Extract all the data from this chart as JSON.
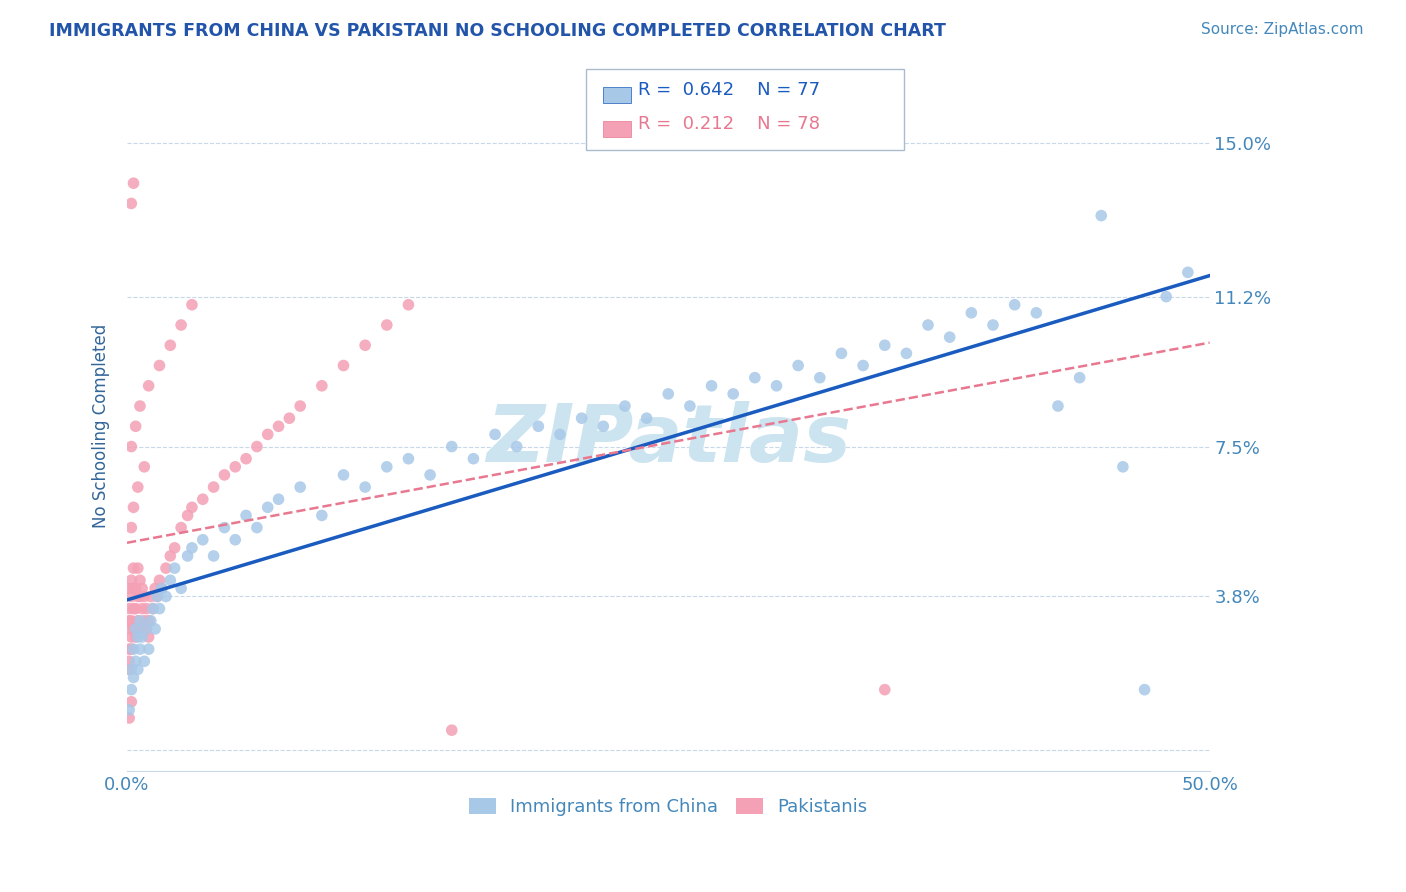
{
  "title": "IMMIGRANTS FROM CHINA VS PAKISTANI NO SCHOOLING COMPLETED CORRELATION CHART",
  "source": "Source: ZipAtlas.com",
  "ylabel": "No Schooling Completed",
  "xlim": [
    0.0,
    0.5
  ],
  "ylim": [
    -0.005,
    0.165
  ],
  "xticks": [
    0.0,
    0.1,
    0.2,
    0.3,
    0.4,
    0.5
  ],
  "xticklabels": [
    "0.0%",
    "",
    "",
    "",
    "",
    "50.0%"
  ],
  "yticks": [
    0.0,
    0.038,
    0.075,
    0.112,
    0.15
  ],
  "yticklabels": [
    "",
    "3.8%",
    "7.5%",
    "11.2%",
    "15.0%"
  ],
  "legend_entries": [
    {
      "label": "Immigrants from China",
      "color": "#a8c8e8",
      "R": "0.642",
      "N": "77"
    },
    {
      "label": "Pakistanis",
      "color": "#f4a0b0",
      "R": "0.212",
      "N": "78"
    }
  ],
  "china_scatter_x": [
    0.001,
    0.002,
    0.002,
    0.003,
    0.003,
    0.004,
    0.004,
    0.005,
    0.005,
    0.006,
    0.006,
    0.007,
    0.008,
    0.009,
    0.01,
    0.011,
    0.012,
    0.013,
    0.014,
    0.015,
    0.016,
    0.018,
    0.02,
    0.022,
    0.025,
    0.028,
    0.03,
    0.035,
    0.04,
    0.045,
    0.05,
    0.055,
    0.06,
    0.065,
    0.07,
    0.08,
    0.09,
    0.1,
    0.11,
    0.12,
    0.13,
    0.14,
    0.15,
    0.16,
    0.17,
    0.18,
    0.19,
    0.2,
    0.21,
    0.22,
    0.23,
    0.24,
    0.25,
    0.26,
    0.27,
    0.28,
    0.29,
    0.3,
    0.31,
    0.32,
    0.33,
    0.34,
    0.35,
    0.36,
    0.37,
    0.38,
    0.39,
    0.4,
    0.41,
    0.42,
    0.43,
    0.44,
    0.45,
    0.46,
    0.47,
    0.48,
    0.49
  ],
  "china_scatter_y": [
    0.01,
    0.015,
    0.02,
    0.025,
    0.018,
    0.022,
    0.03,
    0.02,
    0.028,
    0.025,
    0.032,
    0.028,
    0.022,
    0.03,
    0.025,
    0.032,
    0.035,
    0.03,
    0.038,
    0.035,
    0.04,
    0.038,
    0.042,
    0.045,
    0.04,
    0.048,
    0.05,
    0.052,
    0.048,
    0.055,
    0.052,
    0.058,
    0.055,
    0.06,
    0.062,
    0.065,
    0.058,
    0.068,
    0.065,
    0.07,
    0.072,
    0.068,
    0.075,
    0.072,
    0.078,
    0.075,
    0.08,
    0.078,
    0.082,
    0.08,
    0.085,
    0.082,
    0.088,
    0.085,
    0.09,
    0.088,
    0.092,
    0.09,
    0.095,
    0.092,
    0.098,
    0.095,
    0.1,
    0.098,
    0.105,
    0.102,
    0.108,
    0.105,
    0.11,
    0.108,
    0.085,
    0.092,
    0.132,
    0.07,
    0.015,
    0.112,
    0.118
  ],
  "pak_scatter_x": [
    0.001,
    0.001,
    0.001,
    0.001,
    0.001,
    0.001,
    0.001,
    0.002,
    0.002,
    0.002,
    0.002,
    0.002,
    0.003,
    0.003,
    0.003,
    0.003,
    0.004,
    0.004,
    0.004,
    0.005,
    0.005,
    0.005,
    0.006,
    0.006,
    0.006,
    0.007,
    0.007,
    0.008,
    0.008,
    0.009,
    0.009,
    0.01,
    0.01,
    0.011,
    0.012,
    0.013,
    0.014,
    0.015,
    0.016,
    0.018,
    0.02,
    0.022,
    0.025,
    0.028,
    0.03,
    0.035,
    0.04,
    0.045,
    0.05,
    0.055,
    0.06,
    0.065,
    0.07,
    0.075,
    0.08,
    0.09,
    0.1,
    0.11,
    0.12,
    0.13,
    0.002,
    0.003,
    0.005,
    0.008,
    0.002,
    0.004,
    0.006,
    0.01,
    0.015,
    0.02,
    0.025,
    0.03,
    0.002,
    0.003,
    0.15,
    0.35,
    0.001,
    0.002
  ],
  "pak_scatter_y": [
    0.02,
    0.022,
    0.025,
    0.03,
    0.032,
    0.035,
    0.04,
    0.025,
    0.028,
    0.032,
    0.038,
    0.042,
    0.03,
    0.035,
    0.04,
    0.045,
    0.028,
    0.035,
    0.04,
    0.032,
    0.038,
    0.045,
    0.03,
    0.038,
    0.042,
    0.035,
    0.04,
    0.032,
    0.038,
    0.03,
    0.035,
    0.028,
    0.032,
    0.038,
    0.035,
    0.04,
    0.038,
    0.042,
    0.04,
    0.045,
    0.048,
    0.05,
    0.055,
    0.058,
    0.06,
    0.062,
    0.065,
    0.068,
    0.07,
    0.072,
    0.075,
    0.078,
    0.08,
    0.082,
    0.085,
    0.09,
    0.095,
    0.1,
    0.105,
    0.11,
    0.055,
    0.06,
    0.065,
    0.07,
    0.075,
    0.08,
    0.085,
    0.09,
    0.095,
    0.1,
    0.105,
    0.11,
    0.135,
    0.14,
    0.005,
    0.015,
    0.008,
    0.012
  ],
  "watermark": "ZIPatlas",
  "watermark_color": "#cce4f0",
  "grid_color": "#c8d8e8",
  "title_color": "#2255aa",
  "axis_label_color": "#336699",
  "tick_color": "#4488bb",
  "china_line_color": "#1a5bbf",
  "pak_line_color": "#e87890",
  "china_dot_color": "#a8c8e8",
  "pak_dot_color": "#f4a0b5",
  "legend_border_color": "#aabbcc",
  "background_color": "#ffffff"
}
